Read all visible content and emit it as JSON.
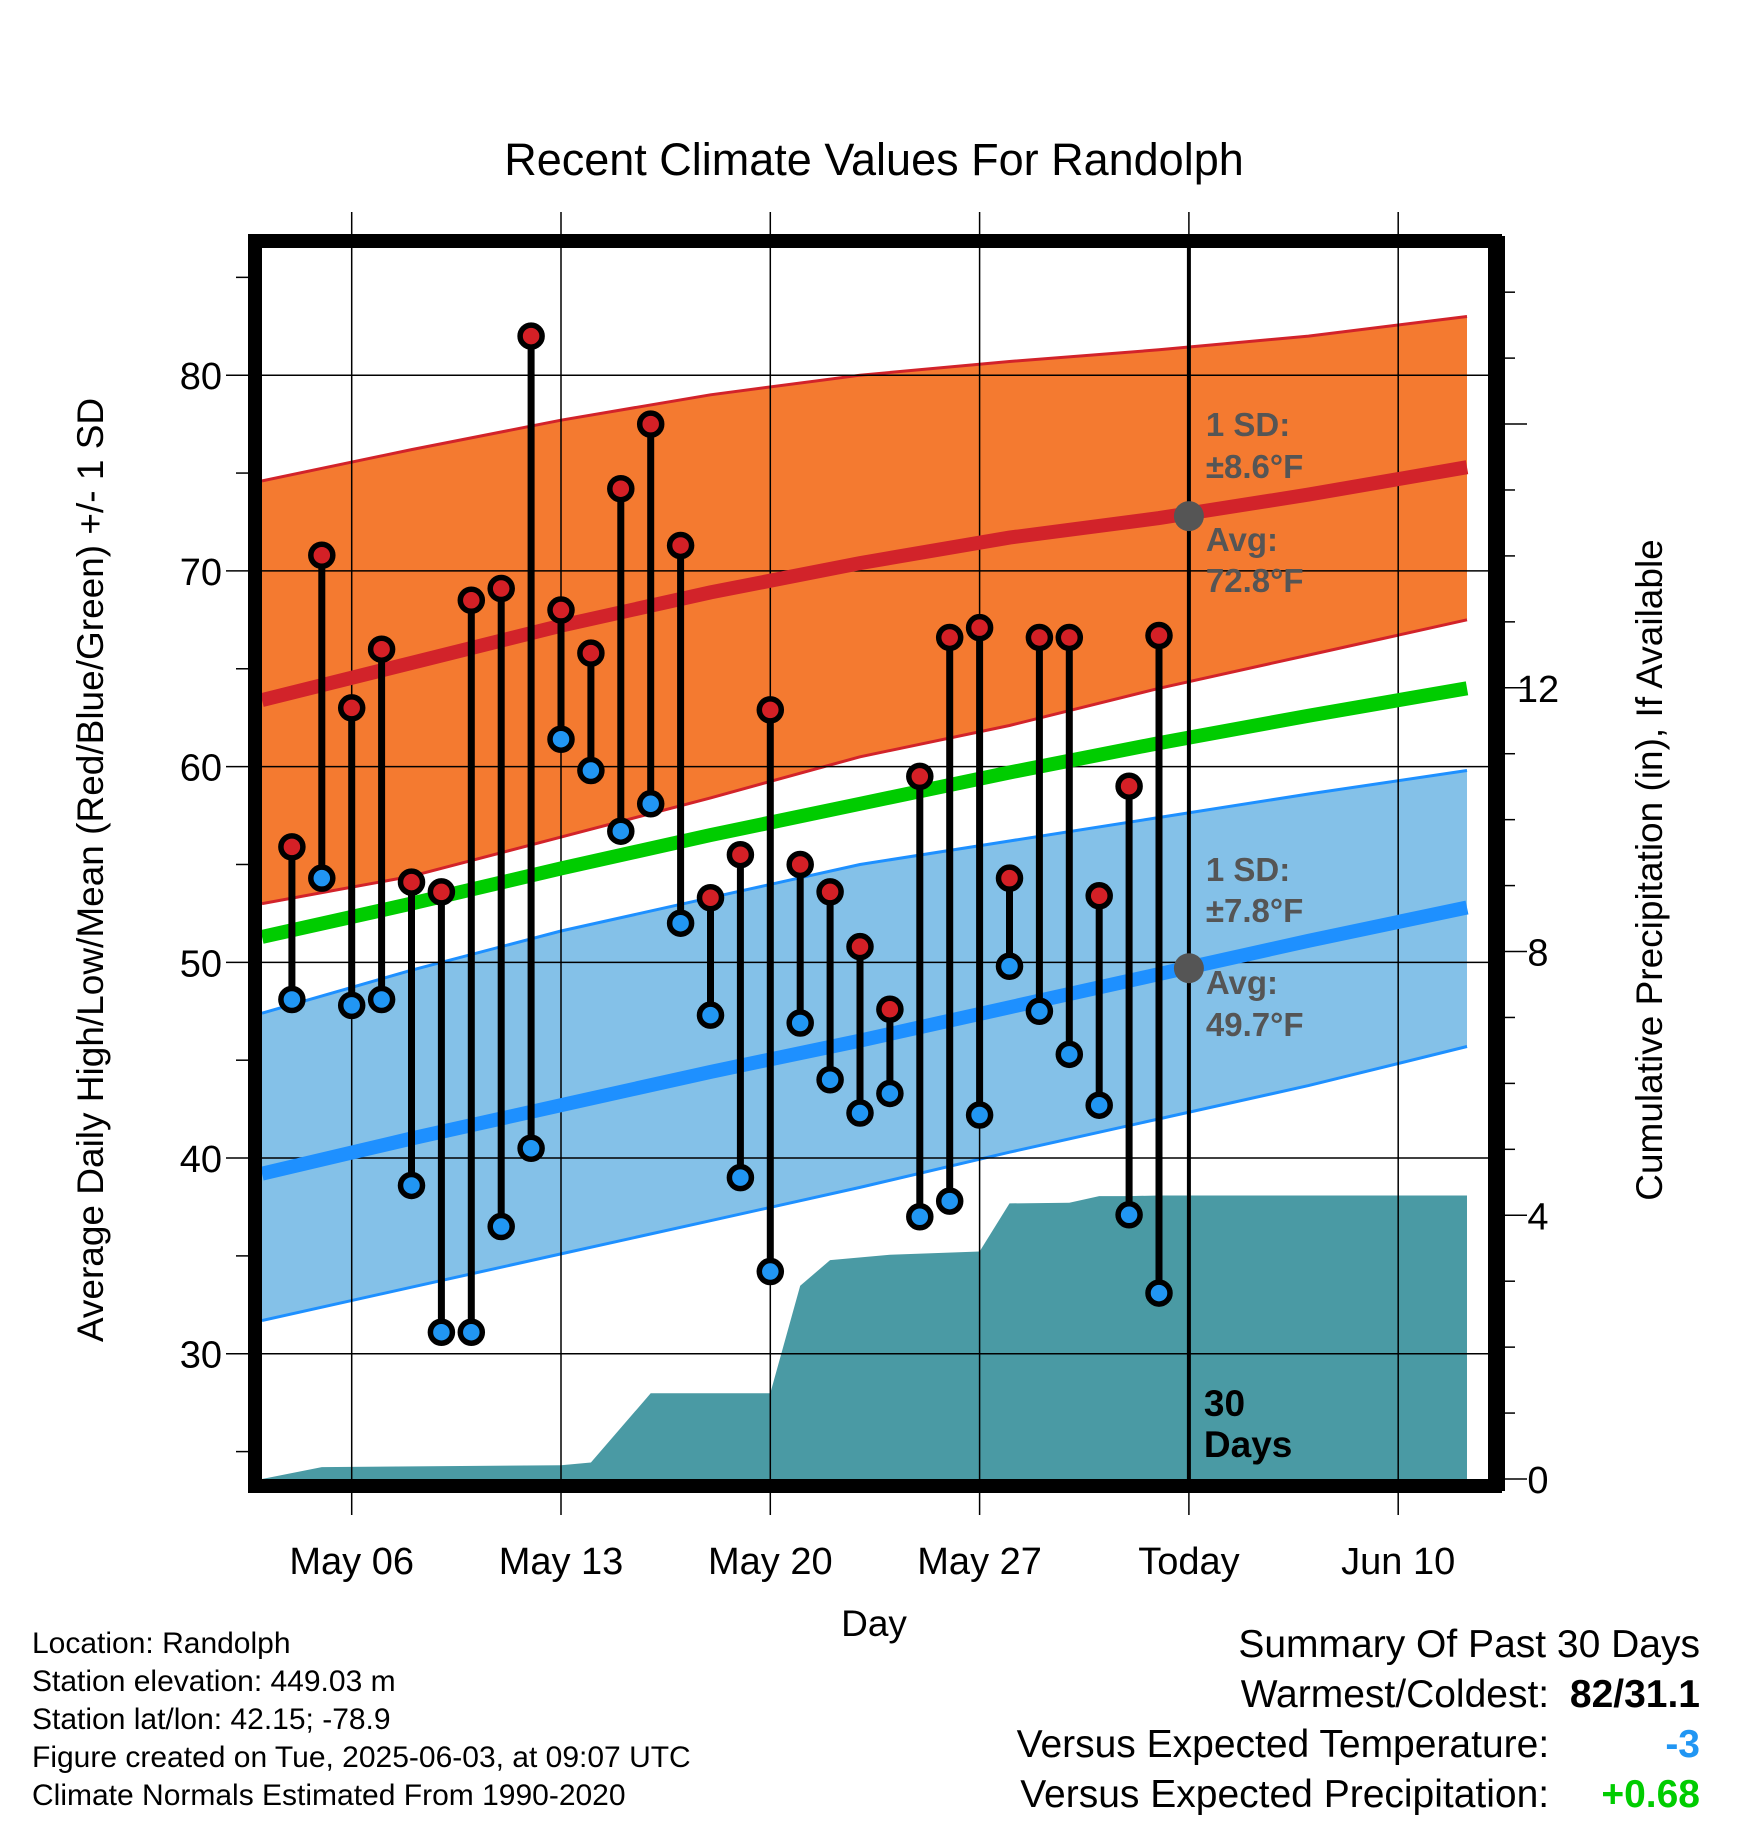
{
  "chart_data": {
    "type": "line",
    "title": "Recent Climate Values For Randolph",
    "xlabel": "Day",
    "ylabel": "Average Daily High/Low/Mean (Red/Blue/Green) +/- 1 SD",
    "y2label": "Cumulative Precipitation (in), If Available",
    "x_range_days": [
      0,
      41
    ],
    "x_ticks": [
      {
        "day": 3,
        "label": "May 06"
      },
      {
        "day": 10,
        "label": "May 13"
      },
      {
        "day": 17,
        "label": "May 20"
      },
      {
        "day": 24,
        "label": "May 27"
      },
      {
        "day": 31,
        "label": "Today"
      },
      {
        "day": 38,
        "label": "Jun 10"
      }
    ],
    "ylim": [
      23.6,
      86.5
    ],
    "y_ticks": [
      30,
      40,
      50,
      60,
      70,
      80
    ],
    "y2lim": [
      0,
      18.67
    ],
    "y2_ticks": [
      0,
      4,
      8,
      12
    ],
    "today_day": 31,
    "today_label_line1": "30",
    "today_label_line2": "Days",
    "normals": {
      "x": [
        0,
        5,
        10,
        15,
        20,
        25,
        30,
        35,
        40.3
      ],
      "high_avg": [
        63.4,
        65.3,
        67.2,
        68.9,
        70.4,
        71.7,
        72.7,
        73.9,
        75.3
      ],
      "high_upper": [
        74.6,
        76.2,
        77.7,
        79.0,
        80.0,
        80.7,
        81.3,
        82.0,
        83.0
      ],
      "high_lower": [
        53.0,
        54.4,
        56.4,
        58.4,
        60.5,
        62.1,
        64.0,
        65.7,
        67.5
      ],
      "mean_avg": [
        51.3,
        53.0,
        54.8,
        56.5,
        58.1,
        59.7,
        61.2,
        62.6,
        64.0
      ],
      "low_avg": [
        39.2,
        41.0,
        42.7,
        44.4,
        46.0,
        47.7,
        49.4,
        51.1,
        52.8
      ],
      "low_upper": [
        47.4,
        49.6,
        51.6,
        53.3,
        55.0,
        56.2,
        57.4,
        58.6,
        59.8
      ],
      "low_lower": [
        31.7,
        33.4,
        35.1,
        36.8,
        38.5,
        40.3,
        42.0,
        43.7,
        45.7
      ]
    },
    "observed": {
      "day": [
        1,
        2,
        3,
        4,
        5,
        6,
        7,
        8,
        9,
        10,
        11,
        12,
        13,
        14,
        15,
        16,
        17,
        18,
        19,
        20,
        21,
        22,
        23,
        24,
        25,
        26,
        27,
        28,
        29,
        30
      ],
      "high": [
        55.9,
        70.8,
        63.0,
        66.0,
        54.1,
        53.6,
        68.5,
        69.1,
        82.0,
        68.0,
        65.8,
        74.2,
        77.5,
        71.3,
        53.3,
        55.5,
        62.9,
        55.0,
        53.6,
        50.8,
        47.6,
        59.5,
        66.6,
        67.1,
        54.3,
        66.6,
        66.6,
        53.4,
        59.0,
        66.7
      ],
      "low": [
        48.1,
        54.3,
        47.8,
        48.1,
        38.6,
        31.1,
        31.1,
        36.5,
        40.5,
        61.4,
        59.8,
        56.7,
        58.1,
        52.0,
        47.3,
        39.0,
        34.2,
        46.9,
        44.0,
        42.3,
        43.3,
        37.0,
        37.8,
        42.2,
        49.8,
        47.5,
        45.3,
        42.7,
        37.1,
        33.1
      ]
    },
    "precip": {
      "x": [
        0,
        2,
        10,
        11,
        13,
        17,
        18,
        19,
        21,
        24,
        25,
        27,
        28,
        29,
        30,
        40.3
      ],
      "cumulative": [
        0,
        0.18,
        0.21,
        0.25,
        1.3,
        1.3,
        2.93,
        3.32,
        3.4,
        3.45,
        4.18,
        4.19,
        4.29,
        4.29,
        4.3,
        4.3
      ]
    },
    "annotations": {
      "high_sd_line1": "1 SD:",
      "high_sd_line2": "±8.6°F",
      "high_avg_line1": "Avg:",
      "high_avg_line2": "72.8°F",
      "low_sd_line1": "1 SD:",
      "low_sd_line2": "±7.8°F",
      "low_avg_line1": "Avg:",
      "low_avg_line2": "49.7°F",
      "today_high_avg": 72.8,
      "today_low_avg": 49.7
    },
    "colors": {
      "high_band": "#f47a30",
      "high_line": "#d2232a",
      "mean_line": "#00cc00",
      "low_band": "#84c1e8",
      "low_line": "#1e90ff",
      "precip_fill": "#4a9aa4",
      "high_dot": "#d42026",
      "low_dot": "#2196f3",
      "annotation": "#555555",
      "summary_temp": "#2196f3",
      "summary_precip": "#00cc00"
    }
  },
  "footer": {
    "location": "Location: Randolph",
    "elevation": "Station elevation: 449.03 m",
    "latlon": "Station lat/lon: 42.15; -78.9",
    "created": "Figure created on Tue, 2025-06-03, at 09:07 UTC",
    "normals": "Climate Normals Estimated From 1990-2020"
  },
  "summary": {
    "heading": "Summary Of Past 30 Days",
    "warmest_coldest_label": "Warmest/Coldest:",
    "warmest_coldest_value": "82/31.1",
    "temp_label": "Versus Expected Temperature:",
    "temp_value": "-3",
    "precip_label": "Versus Expected Precipitation:",
    "precip_value": "+0.68"
  }
}
